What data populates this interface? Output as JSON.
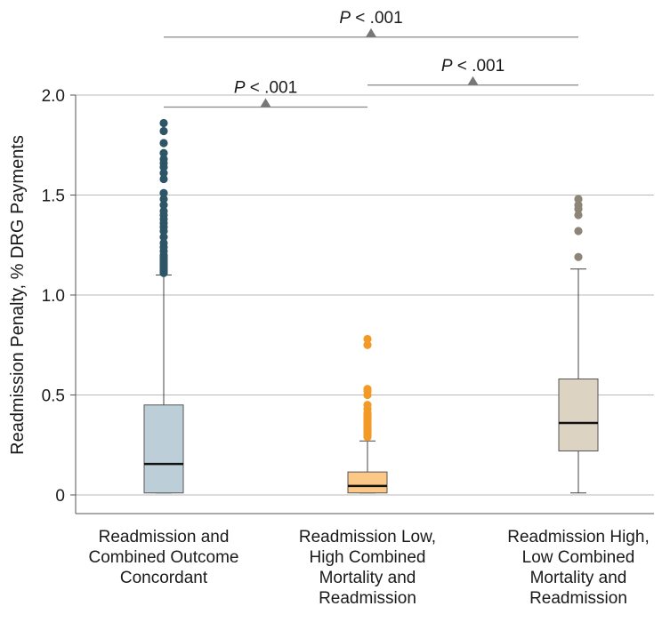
{
  "chart_data": {
    "type": "box",
    "ylabel": "Readmission Penalty, % DRG Payments",
    "xlabel": "",
    "ylim": [
      0,
      2.0
    ],
    "yticks": [
      {
        "value": 0,
        "label": "0"
      },
      {
        "value": 0.5,
        "label": "0.5"
      },
      {
        "value": 1.0,
        "label": "1.0"
      },
      {
        "value": 1.5,
        "label": "1.5"
      },
      {
        "value": 2.0,
        "label": "2.0"
      }
    ],
    "groups": [
      {
        "label_lines": [
          "Readmission and",
          "Combined Outcome",
          "Concordant"
        ],
        "color": "#bccfd9",
        "outlier_color": "#2e5566",
        "min": 0.01,
        "q1": 0.01,
        "median": 0.155,
        "q3": 0.45,
        "max": 1.1,
        "outliers": [
          1.11,
          1.12,
          1.13,
          1.14,
          1.15,
          1.16,
          1.17,
          1.18,
          1.19,
          1.2,
          1.22,
          1.24,
          1.26,
          1.29,
          1.32,
          1.34,
          1.36,
          1.38,
          1.4,
          1.42,
          1.45,
          1.48,
          1.51,
          1.58,
          1.61,
          1.64,
          1.66,
          1.68,
          1.71,
          1.76,
          1.82,
          1.86
        ]
      },
      {
        "label_lines": [
          "Readmission Low,",
          "High Combined",
          "Mortality and",
          "Readmission"
        ],
        "color": "#fcc887",
        "outlier_color": "#f39a26",
        "min": 0.01,
        "q1": 0.01,
        "median": 0.045,
        "q3": 0.115,
        "max": 0.27,
        "outliers": [
          0.29,
          0.3,
          0.31,
          0.32,
          0.33,
          0.34,
          0.35,
          0.36,
          0.37,
          0.38,
          0.39,
          0.4,
          0.41,
          0.43,
          0.45,
          0.5,
          0.52,
          0.53,
          0.75,
          0.78
        ]
      },
      {
        "label_lines": [
          "Readmission High,",
          "Low Combined",
          "Mortality and",
          "Readmission"
        ],
        "color": "#dcd3c3",
        "outlier_color": "#8d8578",
        "min": 0.01,
        "q1": 0.22,
        "median": 0.36,
        "q3": 0.58,
        "max": 1.13,
        "outliers": [
          1.19,
          1.32,
          1.4,
          1.43,
          1.45,
          1.48
        ]
      }
    ],
    "comparisons": [
      {
        "from": 0,
        "to": 1,
        "p_italic": "P",
        "p_rest": " < .001",
        "y": 1.94
      },
      {
        "from": 1,
        "to": 2,
        "p_italic": "P",
        "p_rest": " < .001",
        "y": 2.05
      },
      {
        "from": 0,
        "to": 2,
        "p_italic": "P",
        "p_rest": " < .001",
        "y": 2.29
      }
    ]
  }
}
